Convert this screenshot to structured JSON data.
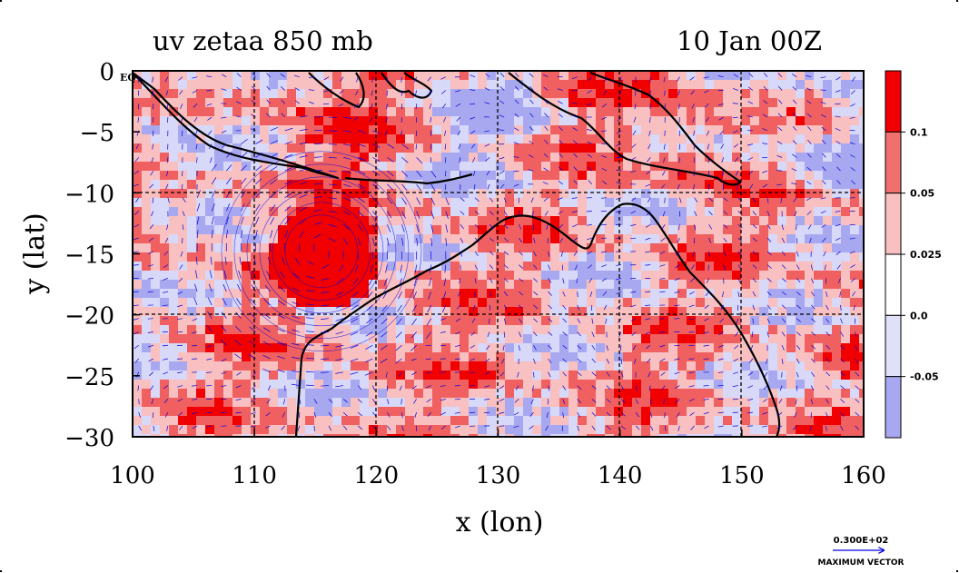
{
  "chart_data": {
    "type": "heatmap",
    "title_left": "uv zetaa 850 mb",
    "title_right": "10 Jan 00Z",
    "xlabel": "x (lon)",
    "ylabel": "y (lat)",
    "xlim": [
      100,
      160
    ],
    "ylim": [
      -30,
      0
    ],
    "x_ticks": [
      100,
      110,
      120,
      130,
      140,
      150,
      160
    ],
    "x_tick_labels": [
      "100",
      "110",
      "120",
      "130",
      "140",
      "150",
      "160"
    ],
    "y_ticks": [
      0,
      -5,
      -10,
      -15,
      -20,
      -25,
      -30
    ],
    "y_tick_labels": [
      "0",
      "−5",
      "−10",
      "−15",
      "−20",
      "−25",
      "−30"
    ],
    "y_top_marker": "EQ",
    "grid": true,
    "colorbar": {
      "placement": "right",
      "levels": [
        "0.1",
        "0.05",
        "0.025",
        "0.0",
        "-0.05"
      ],
      "colors": [
        "#f00000",
        "#f07070",
        "#f8c0c0",
        "#ffffff",
        "#e0e0f8",
        "#a8a8f0"
      ]
    },
    "vector_legend": {
      "value": "0.300E+02",
      "label": "MAXIMUM VECTOR"
    },
    "features": {
      "cyclone_center_lon": 115.5,
      "cyclone_center_lat": -14.8
    },
    "colors": {
      "strong_pos": "#f00000",
      "mid_pos": "#f06060",
      "weak_pos": "#f8c0c0",
      "weak_neg": "#d8d8f8",
      "strong_neg": "#a8a8f0",
      "vectors": "#0000e0",
      "coast": "#000000"
    }
  }
}
